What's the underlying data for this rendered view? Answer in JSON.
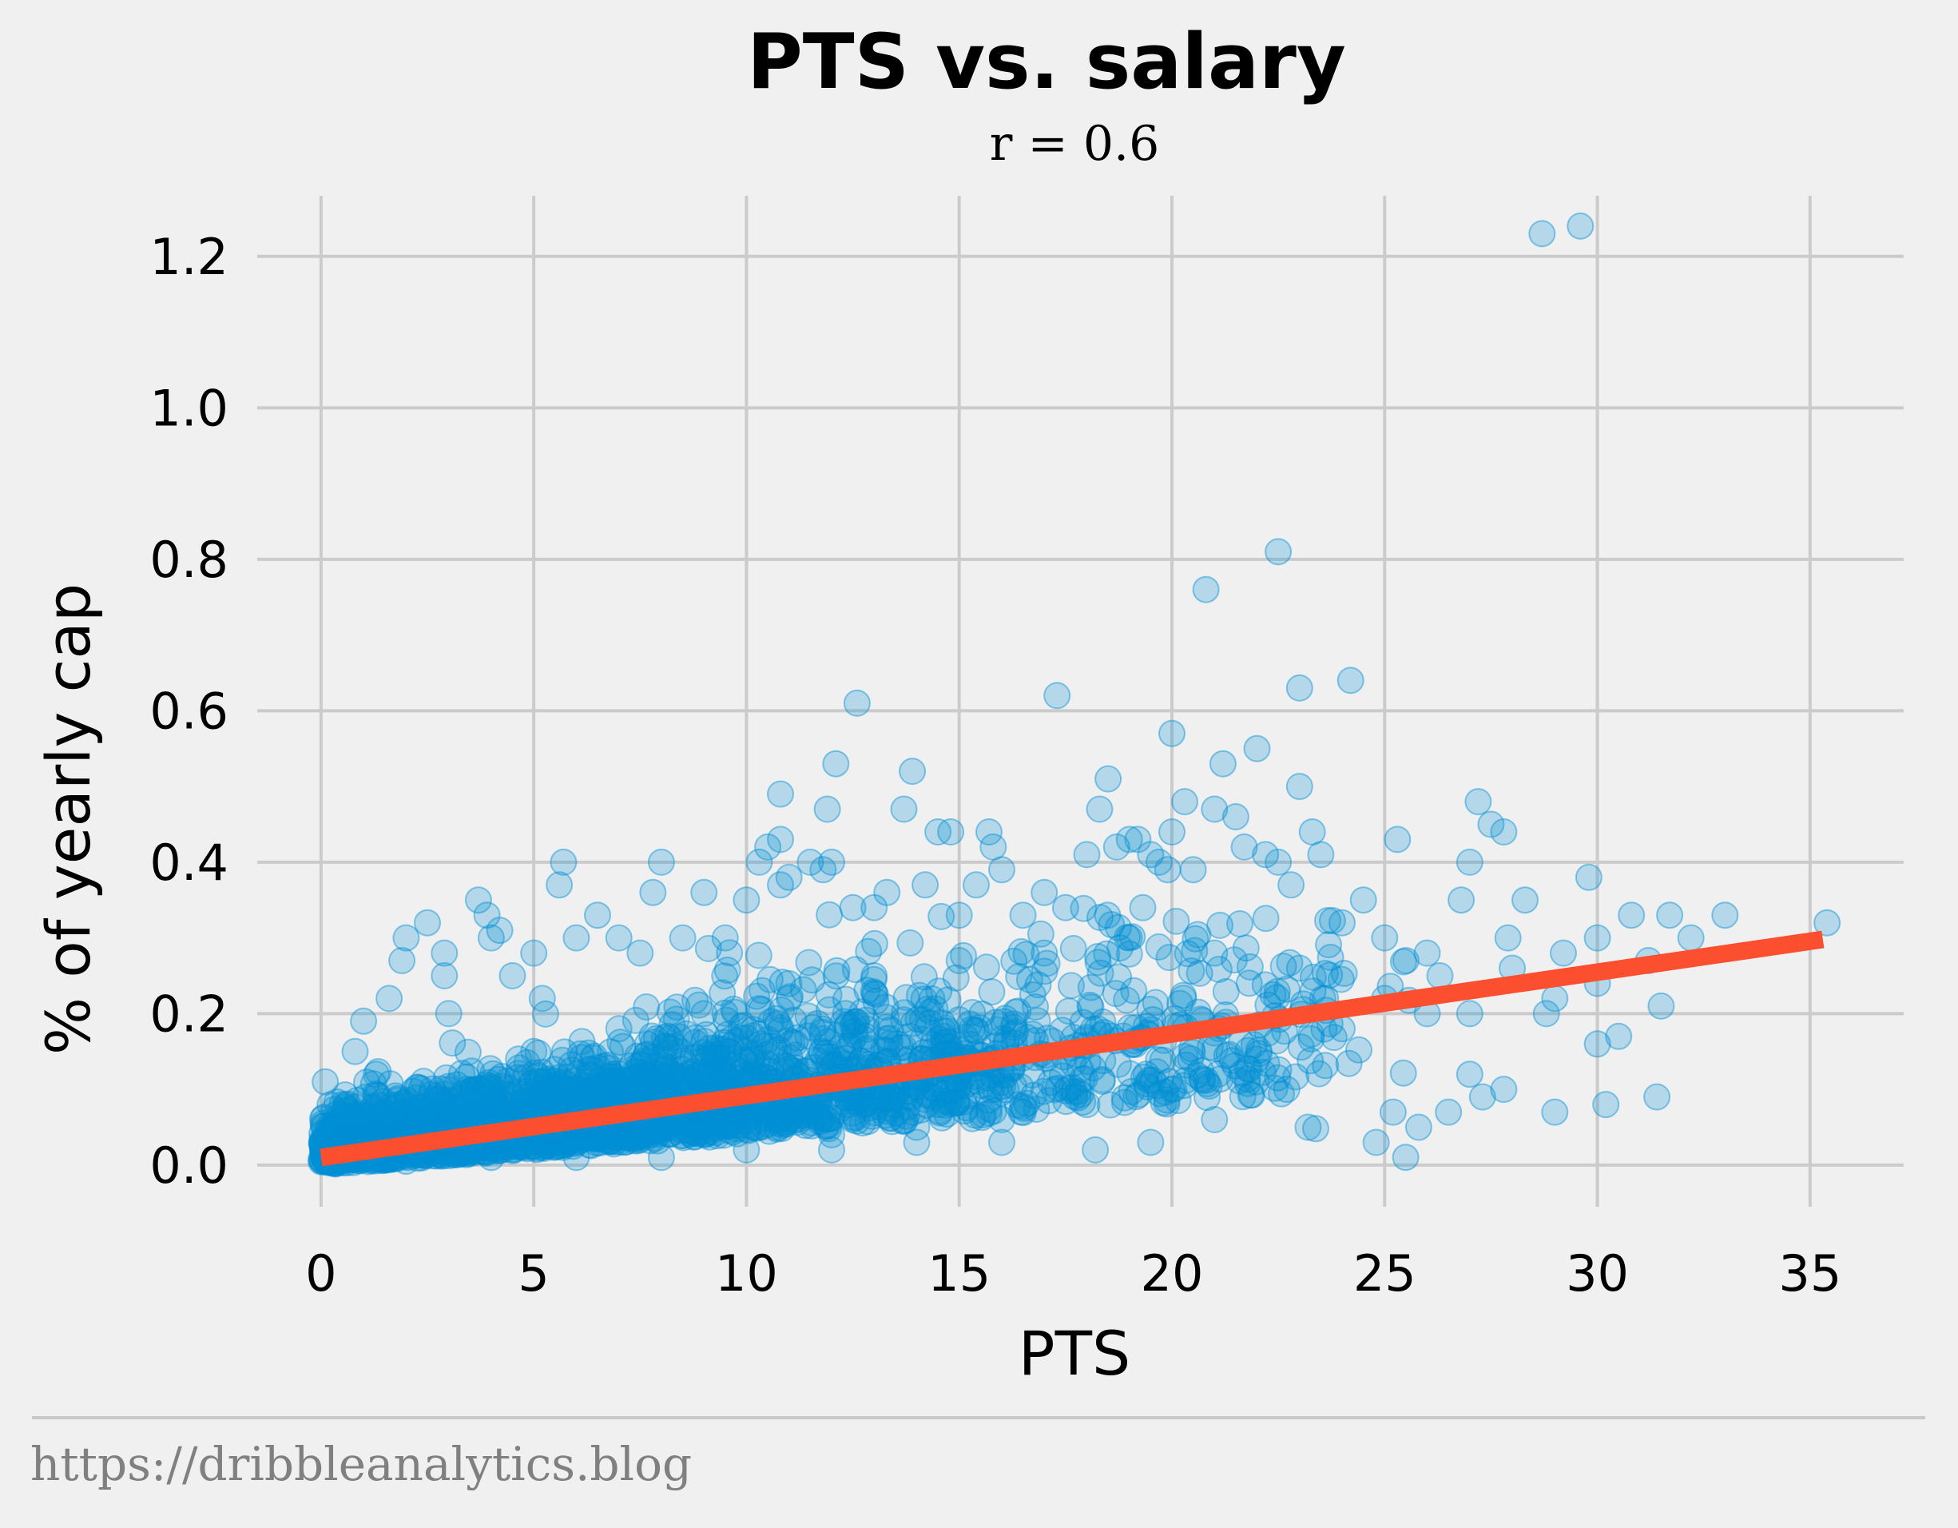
{
  "chart_data": {
    "type": "scatter",
    "title": "PTS vs. salary",
    "subtitle": "r = 0.6",
    "xlabel": "PTS",
    "ylabel": "% of yearly cap",
    "xlim": [
      -1.5,
      37.2
    ],
    "ylim": [
      -0.055,
      1.28
    ],
    "xticks": [
      0,
      5,
      10,
      15,
      20,
      25,
      30,
      35
    ],
    "xtick_labels": [
      "0",
      "5",
      "10",
      "15",
      "20",
      "25",
      "30",
      "35"
    ],
    "yticks": [
      0.0,
      0.2,
      0.4,
      0.6,
      0.8,
      1.0,
      1.2
    ],
    "ytick_labels": [
      "0.0",
      "0.2",
      "0.4",
      "0.6",
      "0.8",
      "1.0",
      "1.2"
    ],
    "grid": true,
    "legend": "none",
    "colors": {
      "points": "#008fd5",
      "fit_line": "#fc4f30",
      "grid": "#cbcbcb",
      "background": "#f0f0f0"
    },
    "fit_line": {
      "x": [
        0,
        35.3
      ],
      "y": [
        0.01,
        0.298
      ]
    },
    "points": [
      [
        0.1,
        0.03
      ],
      [
        0.1,
        0.11
      ],
      [
        0.3,
        0.05
      ],
      [
        0.5,
        0.08
      ],
      [
        0.8,
        0.15
      ],
      [
        1.0,
        0.19
      ],
      [
        1.3,
        0.12
      ],
      [
        1.6,
        0.22
      ],
      [
        1.9,
        0.27
      ],
      [
        2.0,
        0.3
      ],
      [
        2.5,
        0.32
      ],
      [
        2.9,
        0.28
      ],
      [
        2.9,
        0.25
      ],
      [
        3.0,
        0.2
      ],
      [
        3.7,
        0.35
      ],
      [
        3.9,
        0.33
      ],
      [
        4.0,
        0.3
      ],
      [
        4.2,
        0.31
      ],
      [
        4.5,
        0.25
      ],
      [
        5.0,
        0.28
      ],
      [
        5.2,
        0.22
      ],
      [
        5.6,
        0.37
      ],
      [
        5.7,
        0.4
      ],
      [
        6.0,
        0.3
      ],
      [
        6.5,
        0.33
      ],
      [
        7.0,
        0.3
      ],
      [
        7.5,
        0.28
      ],
      [
        7.8,
        0.36
      ],
      [
        8.0,
        0.4
      ],
      [
        8.5,
        0.3
      ],
      [
        9.0,
        0.36
      ],
      [
        9.5,
        0.3
      ],
      [
        10.0,
        0.35
      ],
      [
        10.3,
        0.4
      ],
      [
        10.5,
        0.42
      ],
      [
        10.8,
        0.43
      ],
      [
        10.8,
        0.37
      ],
      [
        10.8,
        0.49
      ],
      [
        11.0,
        0.38
      ],
      [
        11.5,
        0.4
      ],
      [
        11.8,
        0.39
      ],
      [
        11.9,
        0.47
      ],
      [
        12.0,
        0.4
      ],
      [
        12.1,
        0.53
      ],
      [
        12.5,
        0.34
      ],
      [
        12.6,
        0.61
      ],
      [
        13.0,
        0.34
      ],
      [
        13.3,
        0.36
      ],
      [
        13.7,
        0.47
      ],
      [
        13.9,
        0.52
      ],
      [
        14.2,
        0.37
      ],
      [
        14.5,
        0.44
      ],
      [
        14.8,
        0.44
      ],
      [
        15.0,
        0.33
      ],
      [
        15.4,
        0.37
      ],
      [
        15.7,
        0.44
      ],
      [
        15.8,
        0.42
      ],
      [
        16.0,
        0.39
      ],
      [
        16.5,
        0.33
      ],
      [
        17.0,
        0.36
      ],
      [
        17.3,
        0.62
      ],
      [
        17.5,
        0.34
      ],
      [
        18.0,
        0.41
      ],
      [
        18.3,
        0.47
      ],
      [
        18.5,
        0.51
      ],
      [
        18.7,
        0.42
      ],
      [
        19.0,
        0.43
      ],
      [
        19.2,
        0.43
      ],
      [
        19.5,
        0.41
      ],
      [
        19.7,
        0.4
      ],
      [
        19.9,
        0.39
      ],
      [
        20.0,
        0.44
      ],
      [
        20.0,
        0.57
      ],
      [
        20.3,
        0.48
      ],
      [
        20.5,
        0.39
      ],
      [
        20.8,
        0.76
      ],
      [
        21.0,
        0.47
      ],
      [
        21.2,
        0.53
      ],
      [
        21.5,
        0.46
      ],
      [
        21.7,
        0.42
      ],
      [
        22.0,
        0.55
      ],
      [
        22.2,
        0.41
      ],
      [
        22.5,
        0.81
      ],
      [
        22.5,
        0.4
      ],
      [
        22.8,
        0.37
      ],
      [
        23.0,
        0.5
      ],
      [
        23.0,
        0.63
      ],
      [
        23.3,
        0.44
      ],
      [
        23.5,
        0.41
      ],
      [
        24.0,
        0.32
      ],
      [
        24.2,
        0.64
      ],
      [
        24.5,
        0.35
      ],
      [
        25.0,
        0.3
      ],
      [
        25.3,
        0.43
      ],
      [
        25.5,
        0.27
      ],
      [
        26.0,
        0.2
      ],
      [
        26.3,
        0.25
      ],
      [
        26.8,
        0.35
      ],
      [
        27.0,
        0.4
      ],
      [
        27.2,
        0.48
      ],
      [
        27.5,
        0.45
      ],
      [
        27.8,
        0.44
      ],
      [
        27.9,
        0.3
      ],
      [
        28.3,
        0.35
      ],
      [
        28.8,
        0.2
      ],
      [
        28.7,
        1.23
      ],
      [
        29.0,
        0.07
      ],
      [
        29.2,
        0.28
      ],
      [
        29.6,
        1.24
      ],
      [
        29.8,
        0.38
      ],
      [
        30.0,
        0.3
      ],
      [
        30.2,
        0.08
      ],
      [
        30.0,
        0.16
      ],
      [
        30.5,
        0.17
      ],
      [
        30.8,
        0.33
      ],
      [
        31.2,
        0.27
      ],
      [
        31.4,
        0.09
      ],
      [
        31.5,
        0.21
      ],
      [
        31.7,
        0.33
      ],
      [
        32.2,
        0.3
      ],
      [
        33.0,
        0.33
      ],
      [
        35.4,
        0.32
      ],
      [
        25.2,
        0.07
      ],
      [
        25.8,
        0.05
      ],
      [
        26.5,
        0.07
      ],
      [
        27.0,
        0.12
      ],
      [
        27.3,
        0.09
      ],
      [
        27.8,
        0.1
      ],
      [
        24.8,
        0.03
      ],
      [
        23.2,
        0.05
      ],
      [
        22.7,
        0.1
      ],
      [
        21.0,
        0.06
      ],
      [
        19.5,
        0.03
      ],
      [
        18.2,
        0.02
      ],
      [
        16.0,
        0.03
      ],
      [
        14.0,
        0.03
      ],
      [
        12.0,
        0.02
      ],
      [
        10.0,
        0.02
      ],
      [
        8.0,
        0.01
      ],
      [
        6.0,
        0.01
      ],
      [
        4.0,
        0.01
      ],
      [
        2.0,
        0.005
      ],
      [
        0.5,
        0.005
      ],
      [
        3.0,
        0.1
      ],
      [
        5.0,
        0.15
      ],
      [
        7.0,
        0.18
      ],
      [
        9.0,
        0.2
      ],
      [
        11.0,
        0.22
      ],
      [
        13.0,
        0.25
      ],
      [
        15.0,
        0.27
      ],
      [
        17.0,
        0.28
      ],
      [
        19.0,
        0.3
      ],
      [
        21.0,
        0.28
      ],
      [
        23.0,
        0.26
      ],
      [
        25.0,
        0.22
      ],
      [
        27.0,
        0.2
      ],
      [
        28.0,
        0.26
      ],
      [
        29.0,
        0.22
      ],
      [
        30.0,
        0.24
      ],
      [
        26.0,
        0.28
      ],
      [
        24.0,
        0.18
      ],
      [
        22.0,
        0.14
      ],
      [
        20.0,
        0.1
      ],
      [
        18.0,
        0.08
      ],
      [
        16.0,
        0.06
      ],
      [
        14.0,
        0.05
      ],
      [
        12.0,
        0.04
      ],
      [
        10.0,
        0.06
      ]
    ]
  },
  "footer": {
    "source_text": "https://dribbleanalytics.blog"
  }
}
